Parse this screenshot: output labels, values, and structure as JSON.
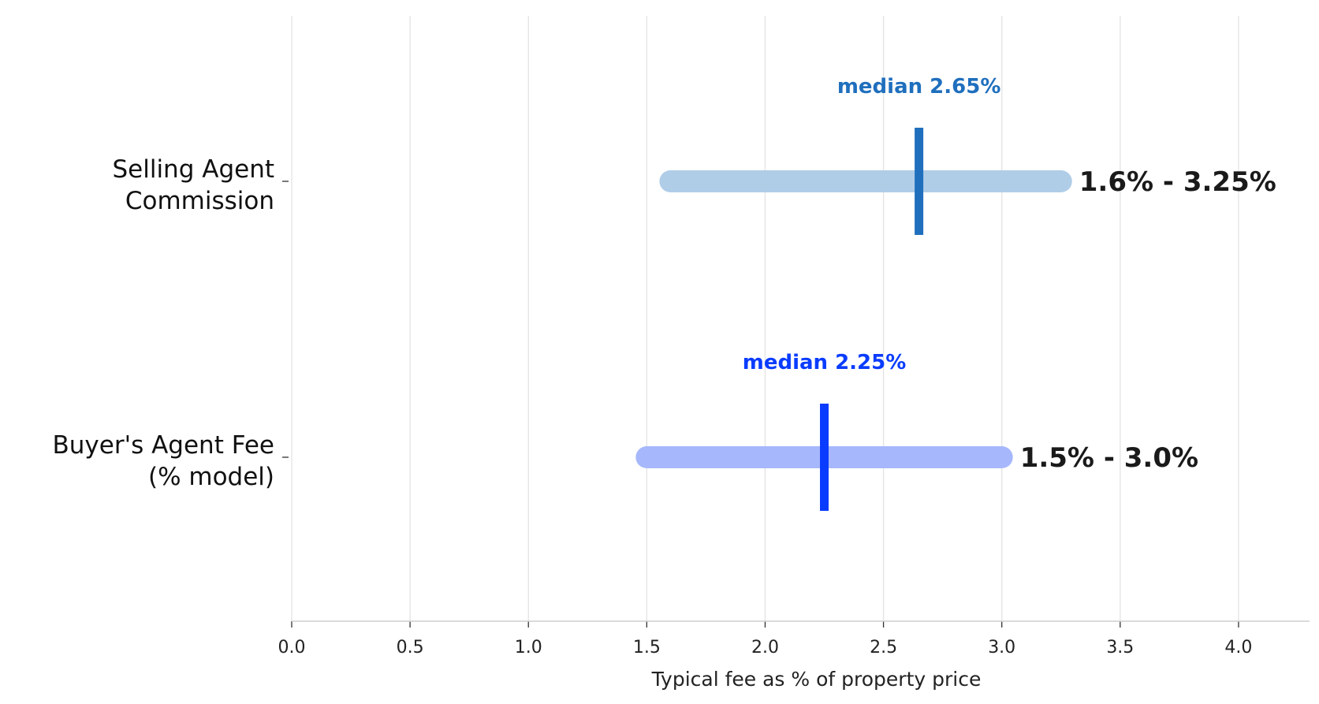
{
  "chart_data": {
    "type": "range",
    "xlabel": "Typical fee as % of property price",
    "xlim": [
      0,
      4.3
    ],
    "xticks": [
      0.0,
      0.5,
      1.0,
      1.5,
      2.0,
      2.5,
      3.0,
      3.5,
      4.0
    ],
    "xtick_labels": [
      "0.0",
      "0.5",
      "1.0",
      "1.5",
      "2.0",
      "2.5",
      "3.0",
      "3.5",
      "4.0"
    ],
    "grid": "vertical",
    "series": [
      {
        "category_lines": [
          "Selling Agent",
          "Commission"
        ],
        "low": 1.6,
        "high": 3.25,
        "median": 2.65,
        "range_label": "1.6% - 3.25%",
        "median_label": "median 2.65%",
        "bar_color": "#b0cde8",
        "median_color": "#1f6fbd"
      },
      {
        "category_lines": [
          "Buyer's Agent Fee",
          "(% model)"
        ],
        "low": 1.5,
        "high": 3.0,
        "median": 2.25,
        "range_label": "1.5% - 3.0%",
        "median_label": "median 2.25%",
        "bar_color": "#a6b8fb",
        "median_color": "#0a3cff"
      }
    ]
  }
}
